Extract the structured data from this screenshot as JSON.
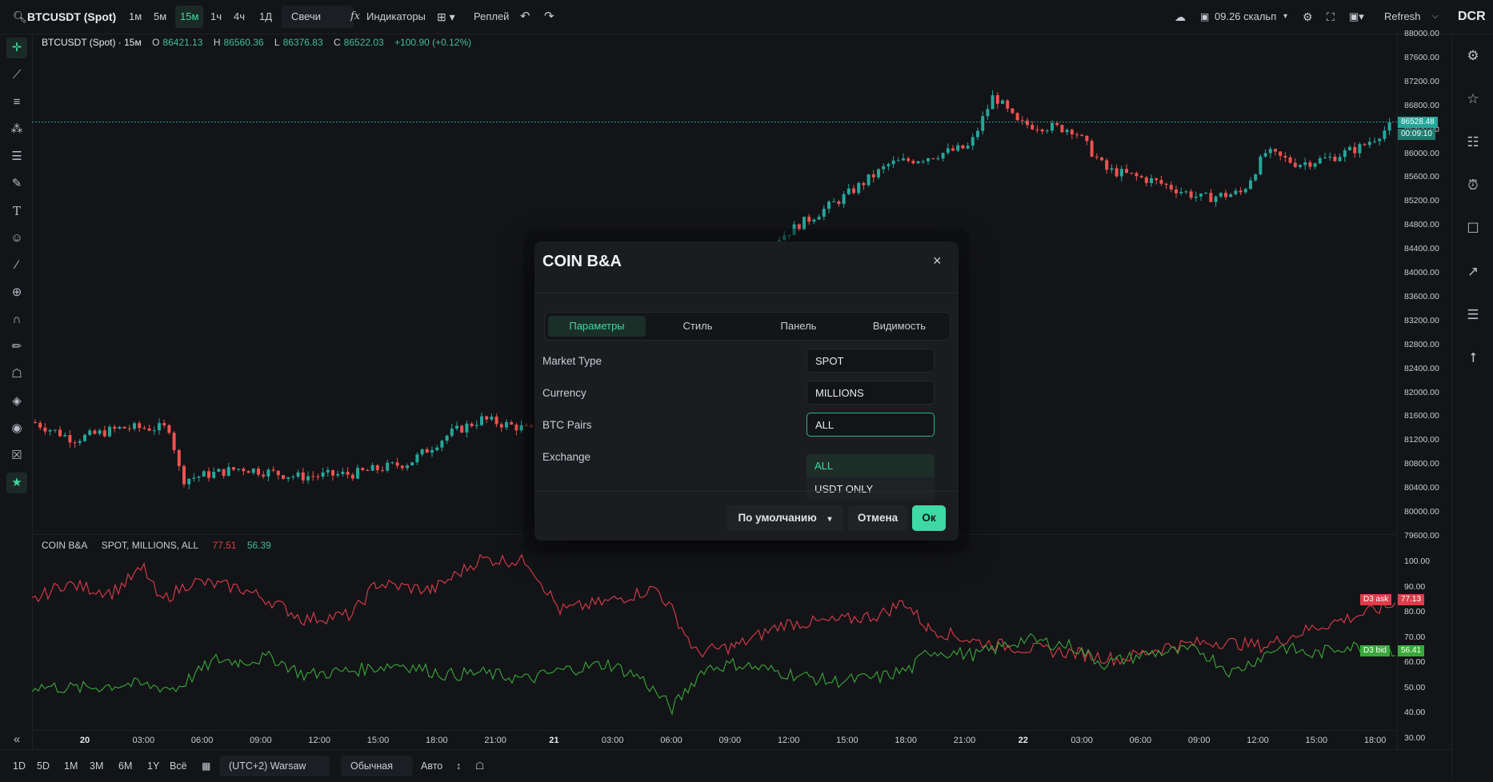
{
  "topbar": {
    "symbol": "BTCUSDT (Spot)",
    "intervals": [
      "1м",
      "5м",
      "15м",
      "1ч",
      "4ч",
      "1Д"
    ],
    "active_interval": "15м",
    "chart_type": "Свечи",
    "indicators_label": "Индикаторы",
    "replay_label": "Реплей",
    "scalp_label": "09.26 скальп",
    "refresh_label": "Refresh",
    "logo_text": "DCR"
  },
  "legend": {
    "title": "BTCUSDT (Spot) · 15м",
    "o_label": "O",
    "o": "86421.13",
    "h_label": "H",
    "h": "86560.36",
    "l_label": "L",
    "l": "86376.83",
    "c_label": "C",
    "c": "86522.03",
    "change": "+100.90 (+0.12%)"
  },
  "osc_legend": {
    "name": "COIN B&A",
    "params": "SPOT, MILLIONS, ALL",
    "ask": "77.51",
    "bid": "56.39"
  },
  "price_axis": [
    "88000.00",
    "87600.00",
    "87200.00",
    "86800.00",
    "86400.00",
    "86000.00",
    "85600.00",
    "85200.00",
    "84800.00",
    "84400.00",
    "84000.00",
    "83600.00",
    "83200.00",
    "82800.00",
    "82400.00",
    "82000.00",
    "81600.00",
    "81200.00",
    "80800.00",
    "80400.00",
    "80000.00",
    "79600.00"
  ],
  "last_price": "86528.48",
  "countdown": "00:09:10",
  "osc_axis": [
    "100.00",
    "90.00",
    "80.00",
    "70.00",
    "60.00",
    "50.00",
    "40.00",
    "30.00"
  ],
  "ask_badge": {
    "label": "D3 ask",
    "value": "77.13"
  },
  "bid_badge": {
    "label": "D3 bid",
    "value": "56.41"
  },
  "time_axis": [
    {
      "t": "20",
      "bold": true
    },
    {
      "t": "03:00"
    },
    {
      "t": "06:00"
    },
    {
      "t": "09:00"
    },
    {
      "t": "12:00"
    },
    {
      "t": "15:00"
    },
    {
      "t": "18:00"
    },
    {
      "t": "21:00"
    },
    {
      "t": "21",
      "bold": true
    },
    {
      "t": "03:00"
    },
    {
      "t": "06:00"
    },
    {
      "t": "09:00"
    },
    {
      "t": "12:00"
    },
    {
      "t": "15:00"
    },
    {
      "t": "18:00"
    },
    {
      "t": "21:00"
    },
    {
      "t": "22",
      "bold": true
    },
    {
      "t": "03:00"
    },
    {
      "t": "06:00"
    },
    {
      "t": "09:00"
    },
    {
      "t": "12:00"
    },
    {
      "t": "15:00"
    },
    {
      "t": "18:00"
    }
  ],
  "bottombar": {
    "ranges": [
      "1D",
      "5D",
      "1M",
      "3M",
      "6M",
      "1Y",
      "Всё"
    ],
    "timezone": "(UTC+2) Warsaw",
    "scale_mode": "Обычная",
    "auto": "Авто"
  },
  "dialog": {
    "title": "COIN B&A",
    "tabs": [
      "Параметры",
      "Стиль",
      "Панель",
      "Видимость"
    ],
    "active_tab": "Параметры",
    "fields": [
      {
        "label": "Market Type",
        "value": "SPOT"
      },
      {
        "label": "Currency",
        "value": "MILLIONS"
      },
      {
        "label": "BTC Pairs",
        "value": "ALL"
      },
      {
        "label": "Exchange",
        "value": ""
      }
    ],
    "dropdown_options": [
      "ALL",
      "USDT ONLY"
    ],
    "dropdown_selected": "ALL",
    "default_button": "По умолчанию",
    "cancel_button": "Отмена",
    "ok_button": "Ок"
  },
  "colors": {
    "up": "#26a69a",
    "down": "#ef5350",
    "accent": "#3fd9a5",
    "ask_line": "#e03c4b",
    "bid_line": "#3aa93a"
  }
}
